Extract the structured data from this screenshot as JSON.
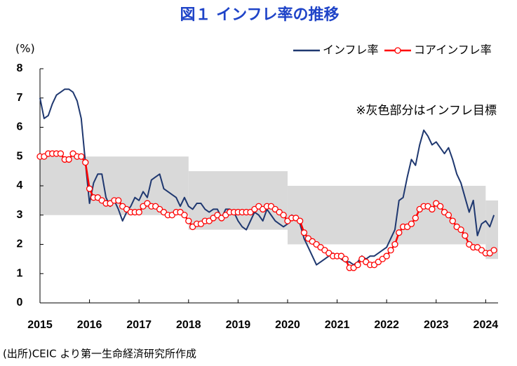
{
  "chart_data": {
    "type": "line",
    "title": "図１ インフレ率の推移",
    "y_label": "(%)",
    "annotation": "※灰色部分はインフレ目標",
    "source": "(出所)CEIC より第一生命経済研究所作成",
    "legend": "top-right",
    "xlim": [
      2015,
      2024.25
    ],
    "xticks": [
      2015,
      2016,
      2017,
      2018,
      2019,
      2020,
      2021,
      2022,
      2023,
      2024
    ],
    "ylim": [
      0,
      8
    ],
    "yticks": [
      0,
      1,
      2,
      3,
      4,
      5,
      6,
      7,
      8
    ],
    "band_color": "#d9d9d9",
    "target_band": [
      {
        "start": 2015,
        "end": 2018,
        "low": 3,
        "high": 5
      },
      {
        "start": 2018,
        "end": 2020,
        "low": 2.5,
        "high": 4.5
      },
      {
        "start": 2020,
        "end": 2024,
        "low": 2,
        "high": 4
      },
      {
        "start": 2024,
        "end": 2024.25,
        "low": 1.5,
        "high": 3.5
      }
    ],
    "x": [
      2015.0,
      2015.083,
      2015.167,
      2015.25,
      2015.333,
      2015.417,
      2015.5,
      2015.583,
      2015.667,
      2015.75,
      2015.833,
      2015.917,
      2016.0,
      2016.083,
      2016.167,
      2016.25,
      2016.333,
      2016.417,
      2016.5,
      2016.583,
      2016.667,
      2016.75,
      2016.833,
      2016.917,
      2017.0,
      2017.083,
      2017.167,
      2017.25,
      2017.333,
      2017.417,
      2017.5,
      2017.583,
      2017.667,
      2017.75,
      2017.833,
      2017.917,
      2018.0,
      2018.083,
      2018.167,
      2018.25,
      2018.333,
      2018.417,
      2018.5,
      2018.583,
      2018.667,
      2018.75,
      2018.833,
      2018.917,
      2019.0,
      2019.083,
      2019.167,
      2019.25,
      2019.333,
      2019.417,
      2019.5,
      2019.583,
      2019.667,
      2019.75,
      2019.833,
      2019.917,
      2020.0,
      2020.083,
      2020.167,
      2020.25,
      2020.333,
      2020.417,
      2020.5,
      2020.583,
      2020.667,
      2020.75,
      2020.833,
      2020.917,
      2021.0,
      2021.083,
      2021.167,
      2021.25,
      2021.333,
      2021.417,
      2021.5,
      2021.583,
      2021.667,
      2021.75,
      2021.833,
      2021.917,
      2022.0,
      2022.083,
      2022.167,
      2022.25,
      2022.333,
      2022.417,
      2022.5,
      2022.583,
      2022.667,
      2022.75,
      2022.833,
      2022.917,
      2023.0,
      2023.083,
      2023.167,
      2023.25,
      2023.333,
      2023.417,
      2023.5,
      2023.583,
      2023.667,
      2023.75,
      2023.833,
      2023.917,
      2024.0,
      2024.083,
      2024.167
    ],
    "series": [
      {
        "name": "インフレ率",
        "color": "#1f3870",
        "markers": false,
        "values": [
          7.0,
          6.3,
          6.4,
          6.8,
          7.1,
          7.2,
          7.3,
          7.3,
          7.2,
          6.9,
          6.3,
          4.8,
          3.4,
          4.1,
          4.4,
          4.4,
          3.6,
          3.3,
          3.5,
          3.2,
          2.8,
          3.1,
          3.3,
          3.6,
          3.5,
          3.8,
          3.6,
          4.2,
          4.3,
          4.4,
          3.9,
          3.8,
          3.7,
          3.6,
          3.3,
          3.6,
          3.3,
          3.2,
          3.4,
          3.4,
          3.2,
          3.1,
          3.2,
          3.2,
          2.9,
          3.2,
          3.2,
          3.1,
          2.8,
          2.6,
          2.5,
          2.8,
          3.1,
          3.0,
          2.8,
          3.2,
          3.0,
          2.8,
          2.7,
          2.6,
          2.7,
          3.0,
          2.9,
          2.7,
          2.2,
          1.9,
          1.6,
          1.3,
          1.4,
          1.5,
          1.6,
          1.7,
          1.6,
          1.5,
          1.4,
          1.4,
          1.3,
          1.4,
          1.6,
          1.5,
          1.6,
          1.6,
          1.7,
          1.8,
          1.9,
          2.2,
          2.5,
          3.5,
          3.6,
          4.3,
          4.9,
          4.7,
          5.4,
          5.9,
          5.7,
          5.4,
          5.5,
          5.3,
          5.1,
          5.3,
          4.9,
          4.4,
          4.1,
          3.6,
          3.1,
          3.5,
          2.3,
          2.7,
          2.8,
          2.6,
          3.0
        ]
      },
      {
        "name": "コアインフレ率",
        "color": "#ff0000",
        "markers": true,
        "values": [
          5.0,
          5.0,
          5.1,
          5.1,
          5.1,
          5.1,
          4.9,
          4.9,
          5.1,
          5.0,
          5.0,
          4.8,
          3.9,
          3.6,
          3.6,
          3.5,
          3.4,
          3.4,
          3.5,
          3.5,
          3.3,
          3.2,
          3.1,
          3.1,
          3.1,
          3.3,
          3.4,
          3.3,
          3.3,
          3.2,
          3.1,
          3.0,
          3.0,
          3.1,
          3.1,
          3.0,
          2.8,
          2.6,
          2.7,
          2.7,
          2.8,
          2.8,
          2.9,
          3.0,
          2.9,
          3.0,
          3.1,
          3.1,
          3.1,
          3.1,
          3.1,
          3.1,
          3.2,
          3.3,
          3.2,
          3.3,
          3.3,
          3.2,
          3.1,
          3.0,
          2.8,
          2.9,
          2.9,
          2.8,
          2.4,
          2.2,
          2.1,
          2.0,
          1.9,
          1.8,
          1.7,
          1.6,
          1.6,
          1.6,
          1.5,
          1.2,
          1.2,
          1.3,
          1.5,
          1.4,
          1.3,
          1.3,
          1.4,
          1.5,
          1.6,
          1.8,
          2.0,
          2.4,
          2.6,
          2.6,
          2.7,
          2.9,
          3.2,
          3.3,
          3.3,
          3.2,
          3.4,
          3.3,
          3.1,
          3.0,
          2.8,
          2.6,
          2.5,
          2.3,
          2.0,
          1.9,
          1.9,
          1.8,
          1.7,
          1.7,
          1.8
        ]
      }
    ]
  }
}
